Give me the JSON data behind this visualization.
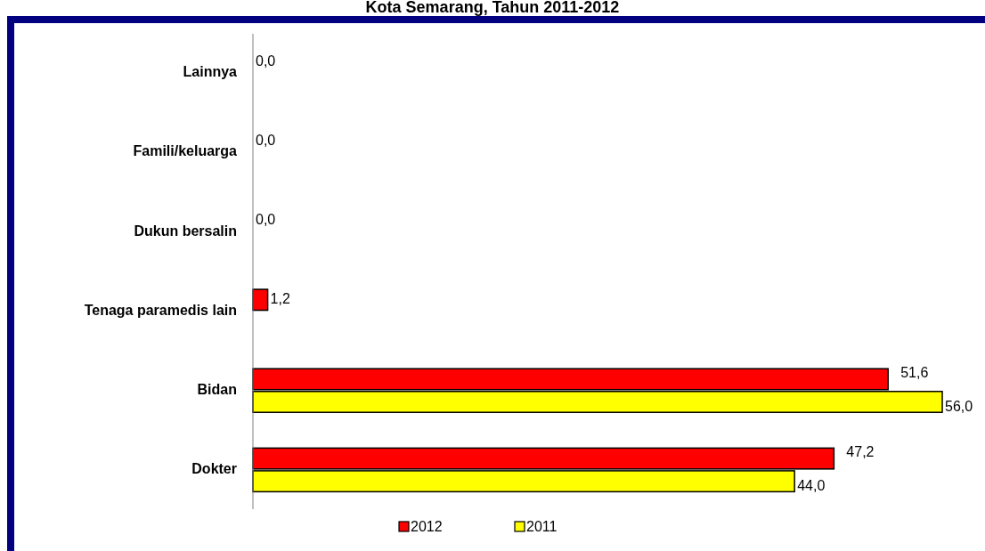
{
  "chart_data": {
    "type": "bar",
    "orientation": "horizontal",
    "title": "Kota Semarang, Tahun 2011-2012",
    "categories": [
      "Lainnya",
      "Famili/keluarga",
      "Dukun bersalin",
      "Tenaga paramedis lain",
      "Bidan",
      "Dokter"
    ],
    "series": [
      {
        "name": "2012",
        "color": "#ff0000",
        "values": [
          0,
          0,
          0,
          1.2,
          51.6,
          47.2
        ],
        "value_labels": [
          "0,0",
          "0,0",
          "0,0",
          "1,2",
          "51,6",
          "47,2"
        ]
      },
      {
        "name": "2011",
        "color": "#ffff00",
        "values": [
          null,
          null,
          null,
          null,
          56,
          44
        ],
        "value_labels": [
          null,
          null,
          null,
          null,
          "56,0",
          "44,0"
        ]
      }
    ],
    "xlim": [
      0,
      56
    ],
    "tick_labels": "y",
    "legend": "bottom"
  }
}
